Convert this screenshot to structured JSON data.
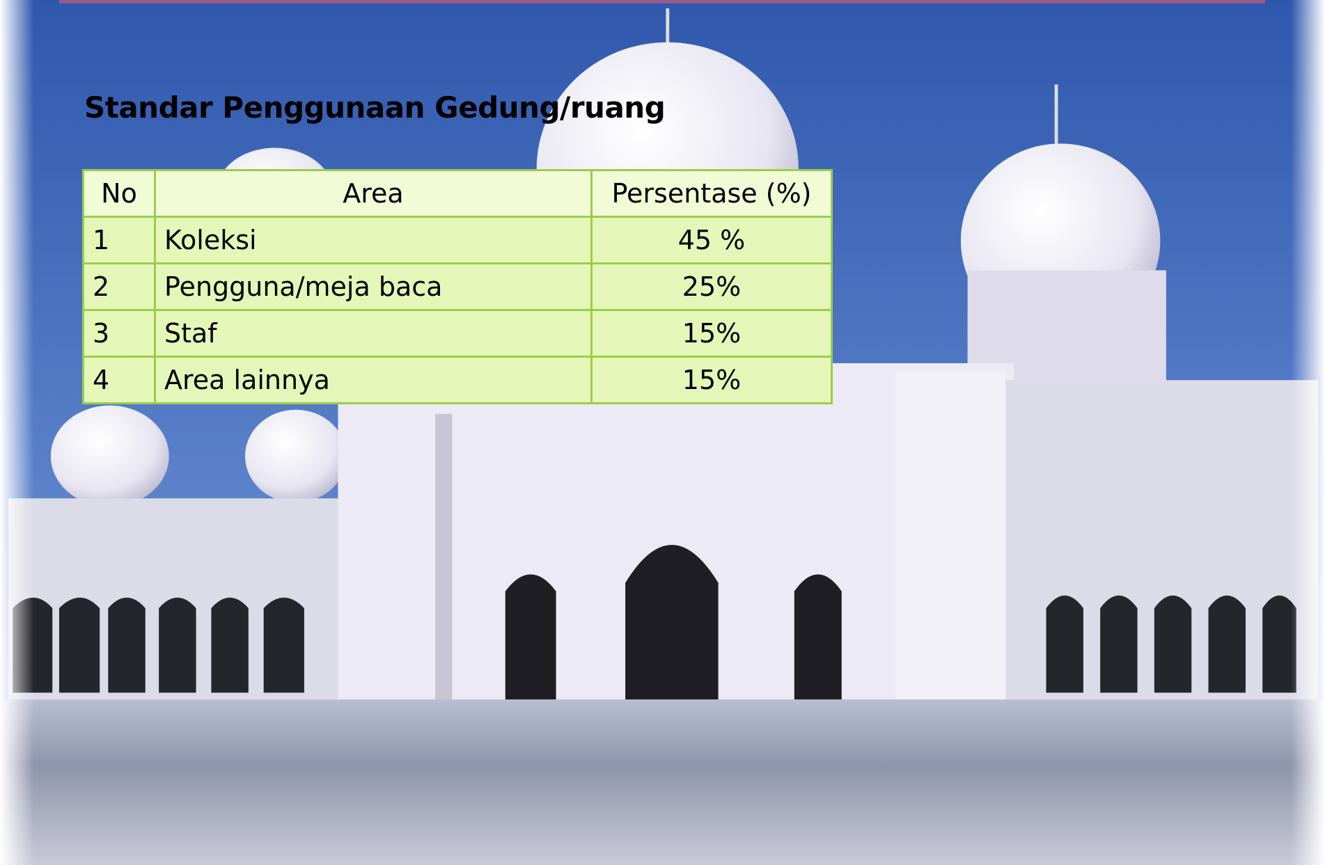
{
  "header": {
    "title": "Standar Penggunaan Gedung/ruang"
  },
  "table": {
    "columns": [
      "No",
      "Area",
      "Persentase (%)"
    ],
    "rows": [
      [
        "1",
        "Koleksi",
        "45 %"
      ],
      [
        "2",
        "Pengguna/meja baca",
        "25%"
      ],
      [
        "3",
        "Staf",
        "15%"
      ],
      [
        "4",
        "Area lainnya",
        "15%"
      ]
    ]
  }
}
